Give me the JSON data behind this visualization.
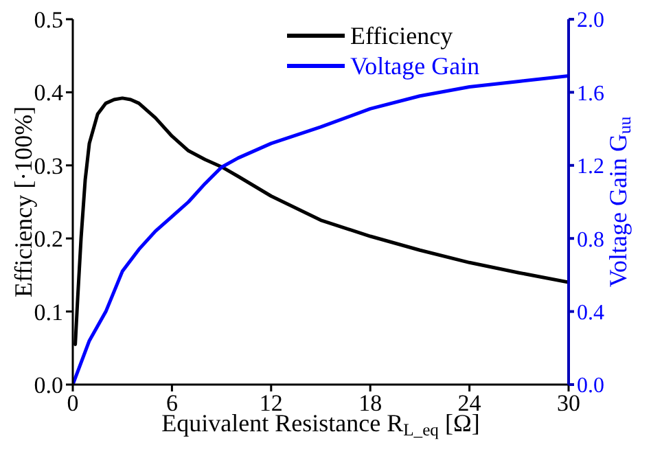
{
  "chart_data": {
    "type": "line",
    "xlabel": "Equivalent Resistance R$_{L_eq}$ [Ω]",
    "ylabel": "Efficiency [·100%]",
    "y2label": "Voltage Gain G$_{uu}$",
    "xlim": [
      0,
      30
    ],
    "xticks": [
      0,
      6,
      12,
      18,
      24,
      30
    ],
    "ylim": [
      0,
      0.5
    ],
    "yticks": [
      {
        "value": 0,
        "label": "0.0"
      },
      0.1,
      0.2,
      0.3,
      0.4,
      0.5
    ],
    "y2lim": [
      0,
      2
    ],
    "y2ticks": [
      {
        "value": 0,
        "label": "0.0"
      },
      0.4,
      0.8,
      1.2,
      1.6,
      {
        "value": 2,
        "label": "2.0"
      }
    ],
    "legend": "top right",
    "grid": false,
    "marker": "none",
    "line_style": "solid",
    "series": [
      {
        "name": "Efficiency",
        "color": "#000000",
        "x": [
          0.15,
          0.3,
          0.5,
          0.75,
          1,
          1.5,
          2,
          2.5,
          3,
          3.5,
          4,
          5,
          6,
          7,
          8,
          9,
          10,
          12,
          15,
          18,
          21,
          24,
          27,
          30
        ],
        "values": [
          0.055,
          0.12,
          0.2,
          0.28,
          0.33,
          0.37,
          0.385,
          0.39,
          0.392,
          0.39,
          0.385,
          0.365,
          0.34,
          0.32,
          0.308,
          0.298,
          0.285,
          0.258,
          0.225,
          0.203,
          0.184,
          0.167,
          0.153,
          0.14
        ]
      },
      {
        "name": "Voltage Gain",
        "color": "#0000ff",
        "axis": "y2",
        "x": [
          0,
          0.5,
          1,
          2,
          3,
          4,
          5,
          6,
          7,
          8,
          9,
          10,
          12,
          15,
          18,
          21,
          24,
          27,
          30
        ],
        "values": [
          0,
          0.12,
          0.24,
          0.4,
          0.62,
          0.74,
          0.84,
          0.92,
          1.0,
          1.1,
          1.19,
          1.24,
          1.32,
          1.41,
          1.51,
          1.58,
          1.63,
          1.66,
          1.69
        ]
      }
    ]
  }
}
